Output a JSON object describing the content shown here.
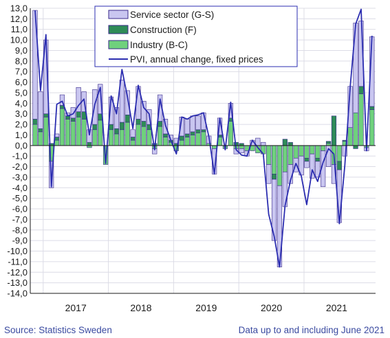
{
  "chart_data": {
    "type": "bar",
    "stacked": true,
    "x_unit": "month",
    "x_start": "2016-11",
    "x_end": "2021-06",
    "year_labels": [
      "2017",
      "2018",
      "2019",
      "2020",
      "2021"
    ],
    "ylim": [
      -14.0,
      13.0
    ],
    "yticks": [
      "13,0",
      "12,0",
      "11,0",
      "10,0",
      "9,0",
      "8,0",
      "7,0",
      "6,0",
      "5,0",
      "4,0",
      "3,0",
      "2,0",
      "1,0",
      "0,0",
      "-1,0",
      "-2,0",
      "-3,0",
      "-4,0",
      "-5,0",
      "-6,0",
      "-7,0",
      "-8,0",
      "-9,0",
      "-10,0",
      "-11,0",
      "-12,0",
      "-13,0",
      "-14,0"
    ],
    "grid": true,
    "legend_position": "top-center",
    "series": [
      {
        "name": "Industry (B-C)",
        "kind": "bar",
        "color": "#6fd17c",
        "values": [
          2.0,
          1.3,
          2.7,
          -1.5,
          0.5,
          3.5,
          2.5,
          2.3,
          2.7,
          2.5,
          -0.2,
          1.5,
          2.4,
          -1.8,
          1.5,
          1.1,
          1.5,
          2.2,
          0.5,
          2.0,
          1.8,
          1.5,
          -0.3,
          1.8,
          0.8,
          0.3,
          -0.5,
          0.5,
          0.8,
          1.0,
          1.2,
          1.3,
          0.2,
          -0.3,
          0.8,
          -0.3,
          2.3,
          -0.3,
          -0.3,
          -0.5,
          -0.5,
          -0.7,
          -0.8,
          -1.8,
          -2.7,
          -3.8,
          -2.5,
          -1.8,
          -1.2,
          -1.0,
          -1.2,
          -0.8,
          -1.2,
          -0.5,
          0.2,
          -1.8,
          -1.5,
          0.4,
          1.7,
          3.1,
          4.9,
          -0.2,
          3.4
        ]
      },
      {
        "name": "Construction (F)",
        "kind": "bar",
        "color": "#2e8b57",
        "values": [
          0.5,
          0.3,
          0.3,
          0.2,
          0.3,
          0.3,
          0.3,
          0.3,
          0.5,
          0.7,
          0.3,
          0.5,
          0.6,
          0.0,
          0.5,
          0.5,
          0.7,
          0.7,
          0.3,
          0.5,
          0.5,
          0.5,
          0.2,
          0.5,
          0.3,
          0.2,
          0.2,
          0.4,
          0.3,
          0.3,
          0.3,
          0.2,
          0.0,
          0.0,
          0.2,
          0.0,
          0.3,
          0.3,
          0.2,
          0.0,
          0.0,
          0.0,
          0.0,
          0.0,
          -0.5,
          0.0,
          0.6,
          0.3,
          0.0,
          0.0,
          -0.3,
          0.0,
          -0.3,
          0.0,
          0.2,
          2.8,
          -0.8,
          0.1,
          0.0,
          -0.3,
          0.7,
          0.0,
          0.3
        ]
      },
      {
        "name": "Service sector (G-S)",
        "kind": "bar",
        "color": "#c9c6f0",
        "values": [
          10.3,
          3.5,
          7.0,
          -2.5,
          0.3,
          1.0,
          0.3,
          1.0,
          2.3,
          1.9,
          1.2,
          3.3,
          2.8,
          0.0,
          2.6,
          2.0,
          4.0,
          2.3,
          0.7,
          3.1,
          1.9,
          1.4,
          -0.5,
          2.5,
          1.4,
          0.5,
          0.5,
          1.8,
          1.4,
          1.5,
          1.3,
          1.6,
          0.7,
          -2.4,
          1.6,
          0.0,
          1.4,
          -0.5,
          -0.4,
          -0.5,
          0.5,
          0.7,
          0.3,
          -1.8,
          -5.8,
          -7.7,
          -3.3,
          -1.8,
          -1.3,
          -1.8,
          -0.6,
          -2.3,
          -1.5,
          -3.4,
          -2.0,
          -1.8,
          -5.0,
          -1.0,
          3.9,
          8.5,
          6.2,
          -0.3,
          6.6
        ]
      },
      {
        "name": "PVI, annual change, fixed prices",
        "kind": "line",
        "color": "#2b2db0",
        "values": [
          12.8,
          5.2,
          10.5,
          -3.9,
          3.9,
          4.2,
          2.8,
          3.0,
          3.8,
          4.4,
          1.0,
          3.9,
          5.5,
          -1.7,
          4.7,
          3.0,
          7.2,
          4.6,
          1.6,
          5.7,
          3.6,
          3.0,
          -0.4,
          4.4,
          1.9,
          0.5,
          -0.8,
          2.7,
          2.5,
          2.8,
          2.9,
          3.1,
          0.8,
          -2.7,
          2.6,
          -0.4,
          4.1,
          -0.4,
          -0.9,
          -1.0,
          0.5,
          -0.2,
          -0.8,
          -6.5,
          -8.6,
          -11.5,
          -5.7,
          -3.3,
          -1.7,
          -2.9,
          -5.6,
          -2.3,
          -3.4,
          -1.6,
          -0.3,
          -0.8,
          -7.4,
          -1.9,
          5.6,
          11.5,
          12.9,
          -0.5,
          10.4
        ]
      }
    ],
    "source_note": "Source: Statistics Sweden",
    "data_note": "Data up to and including June 2021"
  },
  "colors": {
    "axis": "#1a1a1a",
    "grid": "#dcdce6",
    "bar_edge": "#3a2a8a",
    "footer_text": "#3a4aa0"
  }
}
